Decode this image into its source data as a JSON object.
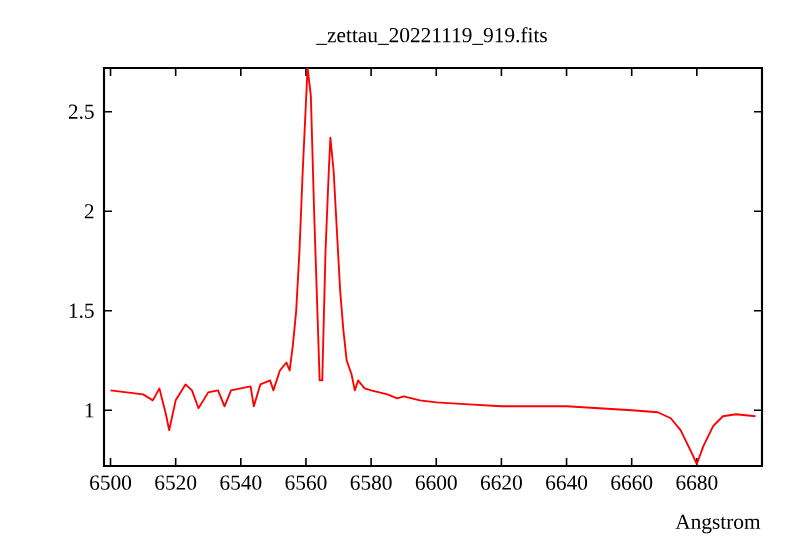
{
  "chart_data": {
    "type": "line",
    "title": "_zettau_20221119_919.fits",
    "xlabel": "Angstrom",
    "x": [
      6500,
      6505,
      6510,
      6513,
      6515,
      6517,
      6518,
      6520,
      6523,
      6525,
      6527,
      6530,
      6533,
      6535,
      6537,
      6540,
      6543,
      6544,
      6546,
      6549,
      6550,
      6552,
      6554,
      6555,
      6556,
      6557,
      6558,
      6559,
      6560,
      6560.5,
      6561.5,
      6562.5,
      6563.5,
      6564.2,
      6565,
      6566,
      6567,
      6567.5,
      6568.5,
      6569.5,
      6570.5,
      6571.5,
      6572.5,
      6574,
      6575,
      6576,
      6578,
      6580,
      6585,
      6588,
      6590,
      6595,
      6600,
      6610,
      6620,
      6630,
      6640,
      6650,
      6660,
      6668,
      6672,
      6675,
      6678,
      6680,
      6682,
      6685,
      6688,
      6692,
      6698
    ],
    "values": [
      1.1,
      1.09,
      1.08,
      1.05,
      1.11,
      0.98,
      0.9,
      1.05,
      1.13,
      1.1,
      1.01,
      1.09,
      1.1,
      1.02,
      1.1,
      1.11,
      1.12,
      1.02,
      1.13,
      1.15,
      1.1,
      1.2,
      1.24,
      1.2,
      1.33,
      1.5,
      1.8,
      2.2,
      2.55,
      2.72,
      2.58,
      2.0,
      1.5,
      1.15,
      1.15,
      1.8,
      2.2,
      2.37,
      2.2,
      1.9,
      1.6,
      1.4,
      1.25,
      1.18,
      1.1,
      1.15,
      1.11,
      1.1,
      1.08,
      1.06,
      1.07,
      1.05,
      1.04,
      1.03,
      1.02,
      1.02,
      1.02,
      1.01,
      1.0,
      0.99,
      0.96,
      0.9,
      0.8,
      0.73,
      0.82,
      0.92,
      0.97,
      0.98,
      0.97
    ],
    "color": "#ff0000",
    "marker": "none",
    "line_style": "solid",
    "xlim": [
      6498,
      6700
    ],
    "ylim": [
      0.72,
      2.72
    ],
    "xticks": [
      6500,
      6520,
      6540,
      6560,
      6580,
      6600,
      6620,
      6640,
      6660,
      6680
    ],
    "yticks": [
      1,
      1.5,
      2,
      2.5
    ]
  }
}
